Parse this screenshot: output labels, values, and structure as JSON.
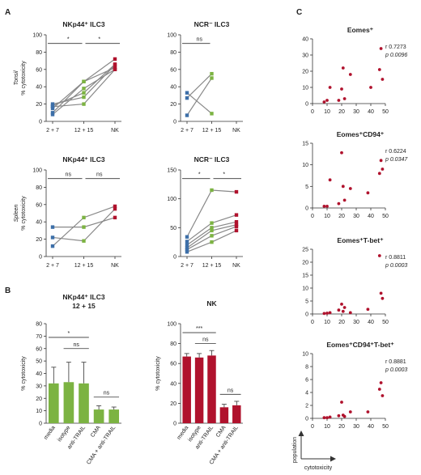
{
  "panels": {
    "A": "A",
    "B": "B",
    "C": "C"
  },
  "chart_data": [
    {
      "id": "A1",
      "type": "line",
      "title": "NKp44⁺ ILC3",
      "row_label": "Tonsil",
      "ylabel": "% cytotoxicity",
      "categories": [
        "2 + 7",
        "12 + 15",
        "NK"
      ],
      "ylim": [
        0,
        100
      ],
      "yticks": [
        0,
        20,
        40,
        60,
        80,
        100
      ],
      "sig": [
        {
          "from": 0,
          "to": 1,
          "label": "*",
          "y": 90
        },
        {
          "from": 1,
          "to": 2,
          "label": "*",
          "y": 90
        }
      ],
      "series": [
        {
          "values": [
            20,
            28,
            65
          ]
        },
        {
          "values": [
            15,
            46,
            62
          ]
        },
        {
          "values": [
            10,
            46,
            72
          ]
        },
        {
          "values": [
            8,
            38,
            60
          ]
        },
        {
          "values": [
            18,
            33,
            66
          ]
        },
        {
          "values": [
            17,
            20,
            60
          ]
        }
      ]
    },
    {
      "id": "A2",
      "type": "line",
      "title": "NCR⁻ ILC3",
      "row_label": "Tonsil",
      "ylabel": "",
      "categories": [
        "2 + 7",
        "12 + 15",
        "NK"
      ],
      "ylim": [
        0,
        100
      ],
      "yticks": [
        0,
        20,
        40,
        60,
        80,
        100
      ],
      "sig": [
        {
          "from": 0,
          "to": 1,
          "label": "ns",
          "y": 90
        }
      ],
      "series": [
        {
          "values": [
            33,
            9,
            null
          ]
        },
        {
          "values": [
            27,
            55,
            null
          ]
        },
        {
          "values": [
            7,
            50,
            null
          ]
        }
      ]
    },
    {
      "id": "A3",
      "type": "line",
      "title": "NKp44⁺ ILC3",
      "row_label": "Spleen",
      "ylabel": "% cytotoxicity",
      "categories": [
        "2 + 7",
        "12 + 15",
        "NK"
      ],
      "ylim": [
        0,
        100
      ],
      "yticks": [
        0,
        20,
        40,
        60,
        80,
        100
      ],
      "sig": [
        {
          "from": 0,
          "to": 1,
          "label": "ns",
          "y": 90
        },
        {
          "from": 1,
          "to": 2,
          "label": "ns",
          "y": 90
        }
      ],
      "series": [
        {
          "values": [
            34,
            34,
            45
          ]
        },
        {
          "values": [
            22,
            18,
            55
          ]
        },
        {
          "values": [
            12,
            45,
            58
          ]
        }
      ]
    },
    {
      "id": "A4",
      "type": "line",
      "title": "NCR⁻ ILC3",
      "row_label": "Spleen",
      "ylabel": "",
      "categories": [
        "2 + 7",
        "12 + 15",
        "NK"
      ],
      "ylim": [
        0,
        150
      ],
      "yticks": [
        0,
        50,
        100,
        150
      ],
      "sig": [
        {
          "from": 0,
          "to": 1,
          "label": "*",
          "y": 135
        },
        {
          "from": 1,
          "to": 2,
          "label": "*",
          "y": 135
        }
      ],
      "series": [
        {
          "values": [
            34,
            115,
            112
          ]
        },
        {
          "values": [
            26,
            58,
            72
          ]
        },
        {
          "values": [
            20,
            50,
            60
          ]
        },
        {
          "values": [
            15,
            45,
            55
          ]
        },
        {
          "values": [
            12,
            36,
            52
          ]
        },
        {
          "values": [
            8,
            25,
            45
          ]
        }
      ]
    },
    {
      "id": "B1",
      "type": "bar",
      "title": "NKp44⁺ ILC3",
      "subtitle": "12 + 15",
      "ylabel": "% cytotoxicity",
      "color": "#7cb342",
      "categories": [
        "media",
        "isotype",
        "anti-TRAIL",
        "CMA",
        "CMA + anti-TRAIL"
      ],
      "values": [
        32,
        33,
        32,
        11,
        11
      ],
      "errors": [
        13,
        16,
        17,
        3,
        2
      ],
      "ylim": [
        0,
        80
      ],
      "yticks": [
        0,
        10,
        20,
        30,
        40,
        50,
        60,
        70,
        80
      ],
      "sig": [
        {
          "from": 0,
          "to": 2,
          "label": "*",
          "y": 69
        },
        {
          "from": 1,
          "to": 2,
          "label": "ns",
          "y": 60
        },
        {
          "from": 3,
          "to": 4,
          "label": "ns",
          "y": 21
        }
      ]
    },
    {
      "id": "B2",
      "type": "bar",
      "title": "NK",
      "subtitle": "",
      "ylabel": "% cytotoxicity",
      "color": "#b0122d",
      "categories": [
        "media",
        "isotype",
        "anti-TRAIL",
        "CMA",
        "CMA + anti-TRAIL"
      ],
      "values": [
        67,
        66,
        68,
        16,
        18
      ],
      "errors": [
        3,
        4,
        5,
        3,
        4
      ],
      "ylim": [
        0,
        100
      ],
      "yticks": [
        0,
        20,
        40,
        60,
        80,
        100
      ],
      "sig": [
        {
          "from": 0,
          "to": 2,
          "label": "***",
          "y": 91
        },
        {
          "from": 1,
          "to": 2,
          "label": "ns",
          "y": 80
        },
        {
          "from": 3,
          "to": 4,
          "label": "ns",
          "y": 29
        }
      ]
    },
    {
      "id": "C1",
      "type": "scatter",
      "title": "Eomes⁺",
      "r": "r 0.7273",
      "p": "p 0.0096",
      "ylim": [
        0,
        40
      ],
      "yticks": [
        0,
        10,
        20,
        30,
        40
      ],
      "xlim": [
        0,
        50
      ],
      "xticks": [
        0,
        10,
        20,
        30,
        40,
        50
      ],
      "points": [
        [
          8,
          1
        ],
        [
          10,
          2
        ],
        [
          12,
          10
        ],
        [
          18,
          2
        ],
        [
          20,
          9
        ],
        [
          21,
          22
        ],
        [
          22,
          3
        ],
        [
          26,
          18
        ],
        [
          40,
          10
        ],
        [
          46,
          21
        ],
        [
          47,
          34
        ],
        [
          48,
          15
        ]
      ]
    },
    {
      "id": "C2",
      "type": "scatter",
      "title": "Eomes⁺CD94⁺",
      "r": "r 0.6224",
      "p": "p 0.0347",
      "ylim": [
        0,
        15
      ],
      "yticks": [
        0,
        5,
        10,
        15
      ],
      "xlim": [
        0,
        50
      ],
      "xticks": [
        0,
        10,
        20,
        30,
        40,
        50
      ],
      "points": [
        [
          8,
          0.4
        ],
        [
          10,
          0.4
        ],
        [
          12,
          6.5
        ],
        [
          18,
          1
        ],
        [
          20,
          12.8
        ],
        [
          21,
          5
        ],
        [
          22,
          1.8
        ],
        [
          26,
          4.5
        ],
        [
          38,
          3.5
        ],
        [
          46,
          8
        ],
        [
          47,
          11
        ],
        [
          48,
          9
        ]
      ]
    },
    {
      "id": "C3",
      "type": "scatter",
      "title": "Eomes⁺T-bet⁺",
      "r": "r 0.8811",
      "p": "p 0.0003",
      "ylim": [
        0,
        25
      ],
      "yticks": [
        0,
        5,
        10,
        15,
        20,
        25
      ],
      "xlim": [
        0,
        50
      ],
      "xticks": [
        0,
        10,
        20,
        30,
        40,
        50
      ],
      "points": [
        [
          8,
          0.2
        ],
        [
          10,
          0.3
        ],
        [
          12,
          0.5
        ],
        [
          18,
          1.5
        ],
        [
          20,
          3.8
        ],
        [
          21,
          1
        ],
        [
          22,
          2.5
        ],
        [
          26,
          0.5
        ],
        [
          38,
          1.8
        ],
        [
          46,
          22.5
        ],
        [
          47,
          8
        ],
        [
          48,
          6
        ]
      ]
    },
    {
      "id": "C4",
      "type": "scatter",
      "title": "Eomes⁺CD94⁺T-bet⁺",
      "r": "r 0.8881",
      "p": "p 0.0003",
      "ylim": [
        0,
        10
      ],
      "yticks": [
        0,
        2,
        4,
        6,
        8,
        10
      ],
      "xlim": [
        0,
        50
      ],
      "xticks": [
        0,
        10,
        20,
        30,
        40,
        50
      ],
      "points": [
        [
          8,
          0.1
        ],
        [
          10,
          0.1
        ],
        [
          12,
          0.2
        ],
        [
          18,
          0.4
        ],
        [
          20,
          2.5
        ],
        [
          21,
          0.5
        ],
        [
          22,
          0.3
        ],
        [
          26,
          1
        ],
        [
          38,
          1
        ],
        [
          46,
          4.5
        ],
        [
          47,
          5.5
        ],
        [
          48,
          3.5
        ]
      ]
    }
  ],
  "corner_axes": {
    "y": "population",
    "x": "cytotoxicity"
  },
  "colors": {
    "pre": "#3d6fa8",
    "post": "#7cb342",
    "nk": "#b0122d",
    "dot": "#b0122d"
  }
}
